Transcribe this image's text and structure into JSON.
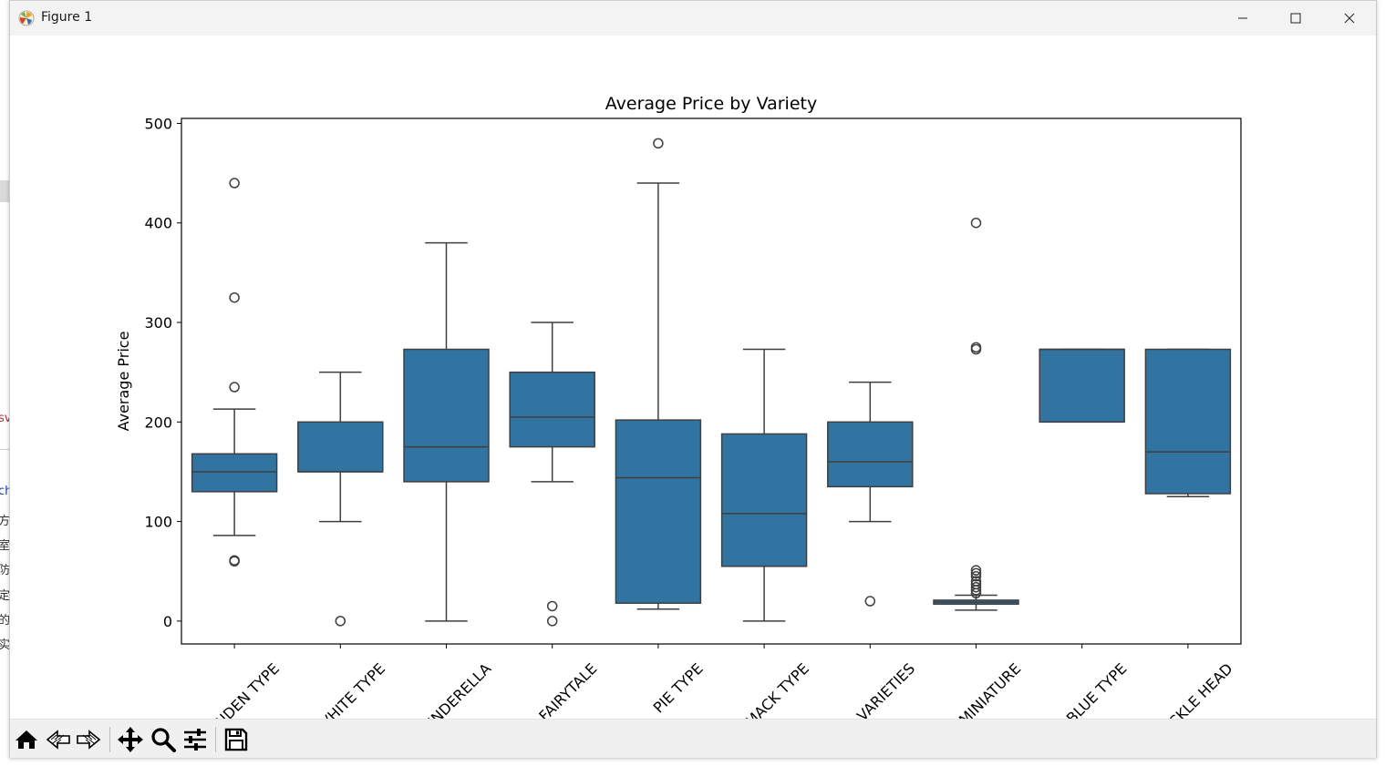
{
  "window": {
    "title": "Figure 1",
    "icon": "matplotlib-logo-icon",
    "controls": [
      "minimize-icon",
      "maximize-icon",
      "close-icon"
    ]
  },
  "background_fragments": [
    "sv",
    "ch",
    "方",
    "室",
    "防",
    "定",
    "的",
    "实"
  ],
  "toolbar": {
    "buttons": [
      {
        "name": "home-button",
        "icon": "home-icon"
      },
      {
        "name": "back-button",
        "icon": "arrow-left-icon"
      },
      {
        "name": "forward-button",
        "icon": "arrow-right-icon"
      },
      {
        "name": "pan-button",
        "icon": "move-icon"
      },
      {
        "name": "zoom-button",
        "icon": "magnifier-icon"
      },
      {
        "name": "configure-subplots-button",
        "icon": "sliders-icon"
      },
      {
        "name": "save-button",
        "icon": "floppy-disk-icon"
      }
    ]
  },
  "chart_data": {
    "type": "boxplot",
    "title": "Average Price by Variety",
    "xlabel": "",
    "ylabel": "Average Price",
    "ylim": [
      -23,
      505
    ],
    "yticks": [
      0,
      100,
      200,
      300,
      400,
      500
    ],
    "grid": false,
    "legend": "none",
    "box_color": "#3274a1",
    "line_color": "#3f3f3f",
    "categories": [
      "HOWDEN TYPE",
      "HOWDEN WHITE TYPE",
      "CINDERELLA",
      "FAIRYTALE",
      "PIE TYPE",
      "BIG MACK TYPE",
      "MIXED HEIRLOOM VARIETIES",
      "MINIATURE",
      "BLUE TYPE",
      "KNUCKLE HEAD"
    ],
    "tick_labels_visible": [
      "NDEN TYPE",
      "VHITE TYPE",
      "INDERELLA",
      "FAIRYTALE",
      "PIE TYPE",
      "MACK TYPE",
      "VARIETIES",
      "MINIATURE",
      "BLUE TYPE",
      "CKLE HEAD"
    ],
    "boxes": [
      {
        "whislo": 86,
        "q1": 130,
        "med": 150,
        "q3": 168,
        "whishi": 213,
        "fliers": [
          60,
          61,
          235,
          325,
          440
        ]
      },
      {
        "whislo": 100,
        "q1": 150,
        "med": 150,
        "q3": 200,
        "whishi": 250,
        "fliers": [
          0
        ]
      },
      {
        "whislo": 0,
        "q1": 140,
        "med": 175,
        "q3": 273,
        "whishi": 380,
        "fliers": []
      },
      {
        "whislo": 140,
        "q1": 175,
        "med": 205,
        "q3": 250,
        "whishi": 300,
        "fliers": [
          0,
          15
        ]
      },
      {
        "whislo": 12,
        "q1": 18,
        "med": 144,
        "q3": 202,
        "whishi": 440,
        "fliers": [
          480
        ]
      },
      {
        "whislo": 0,
        "q1": 55,
        "med": 108,
        "q3": 188,
        "whishi": 273,
        "fliers": []
      },
      {
        "whislo": 100,
        "q1": 135,
        "med": 160,
        "q3": 200,
        "whishi": 240,
        "fliers": [
          20
        ]
      },
      {
        "whislo": 11,
        "q1": 17,
        "med": 19,
        "q3": 21,
        "whishi": 26,
        "fliers": [
          28,
          31,
          34,
          37,
          40,
          45,
          48,
          51,
          273,
          275,
          400
        ]
      },
      {
        "whislo": 200,
        "q1": 200,
        "med": 273,
        "q3": 273,
        "whishi": 273,
        "fliers": []
      },
      {
        "whislo": 125,
        "q1": 128,
        "med": 170,
        "q3": 273,
        "whishi": 273,
        "fliers": []
      }
    ]
  }
}
